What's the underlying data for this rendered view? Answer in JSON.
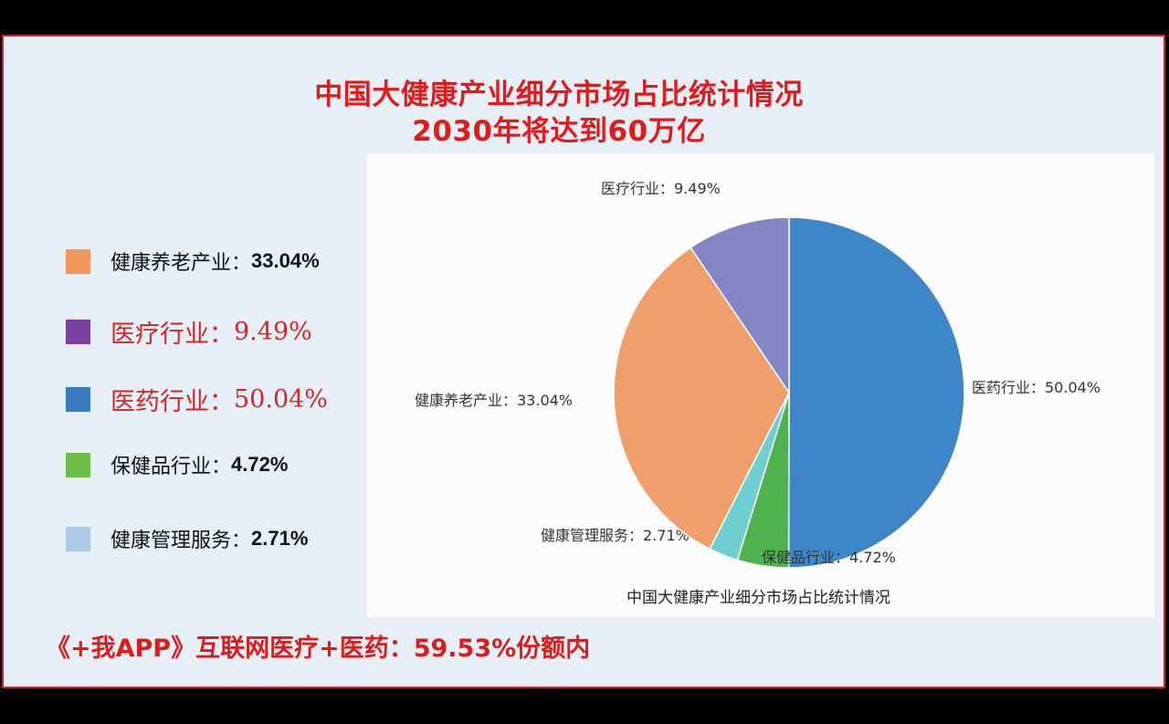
{
  "title_line1": "中国大健康产业细分市场占比统计情况",
  "title_line2": "2030年将达到60万亿",
  "legend": [
    {
      "label": "健康养老产业：",
      "value": "33.04%",
      "color": "#f0975a",
      "style": "normal"
    },
    {
      "label": "医疗行业：",
      "value": "9.49%",
      "color": "#7b3fa1",
      "style": "red"
    },
    {
      "label": "医药行业：",
      "value": "50.04%",
      "color": "#3b7bc0",
      "style": "red"
    },
    {
      "label": "保健品行业：",
      "value": "4.72%",
      "color": "#6cbf46",
      "style": "normal"
    },
    {
      "label": "健康管理服务：",
      "value": "2.71%",
      "color": "#a9cbe8",
      "style": "normal"
    }
  ],
  "footer": "《+我APP》互联网医疗+医药：59.53%份额内",
  "chart_data": {
    "type": "pie",
    "title": "中国大健康产业细分市场占比统计情况",
    "start_angle_deg": 0,
    "direction": "clockwise",
    "slices": [
      {
        "name": "医药行业",
        "value": 50.04,
        "label": "医药行业：50.04%",
        "color": "#3d87c9"
      },
      {
        "name": "保健品行业",
        "value": 4.72,
        "label": "保健品行业：4.72%",
        "color": "#4eb34e"
      },
      {
        "name": "健康管理服务",
        "value": 2.71,
        "label": "健康管理服务：2.71%",
        "color": "#6fcfcf"
      },
      {
        "name": "健康养老产业",
        "value": 33.04,
        "label": "健康养老产业：33.04%",
        "color": "#ee9f6b"
      },
      {
        "name": "医疗行业",
        "value": 9.49,
        "label": "医疗行业：9.49%",
        "color": "#8486c4"
      }
    ]
  }
}
